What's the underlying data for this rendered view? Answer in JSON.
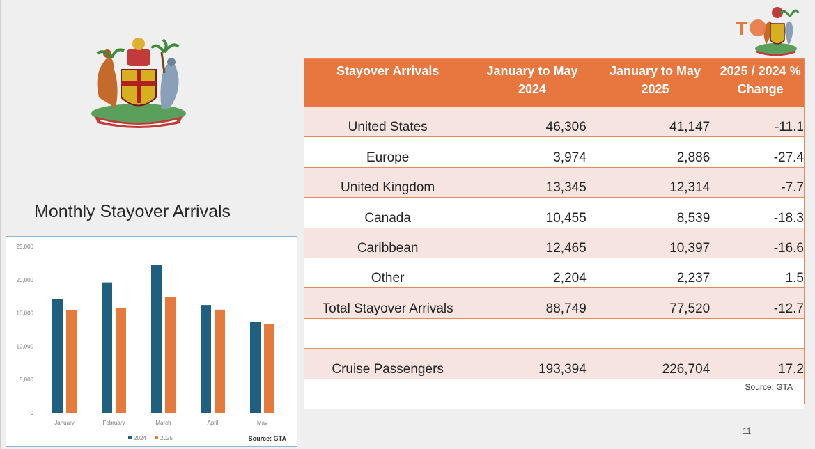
{
  "chart_heading": "Monthly Stayover Arrivals",
  "colors": {
    "accent": "#e8773f",
    "series_2024": "#1f5f80",
    "series_2025": "#e67a3c",
    "row_shade": "#f5e4e0"
  },
  "icons": [
    "coat-of-arms-icon",
    "grenada-tourism-logo-icon"
  ],
  "logo_text": "T",
  "table": {
    "headers": [
      "Stayover Arrivals",
      "January to May 2024",
      "January to May 2025",
      "2025 / 2024 % Change"
    ],
    "rows": [
      {
        "label": "United States",
        "v2024": "46,306",
        "v2025": "41,147",
        "change": "-11.1"
      },
      {
        "label": "Europe",
        "v2024": "3,974",
        "v2025": "2,886",
        "change": "-27.4"
      },
      {
        "label": "United Kingdom",
        "v2024": "13,345",
        "v2025": "12,314",
        "change": "-7.7"
      },
      {
        "label": "Canada",
        "v2024": "10,455",
        "v2025": "8,539",
        "change": "-18.3"
      },
      {
        "label": "Caribbean",
        "v2024": "12,465",
        "v2025": "10,397",
        "change": "-16.6"
      },
      {
        "label": "Other",
        "v2024": "2,204",
        "v2025": "2,237",
        "change": "1.5"
      },
      {
        "label": "Total Stayover Arrivals",
        "v2024": "88,749",
        "v2025": "77,520",
        "change": "-12.7"
      },
      {
        "label": "",
        "v2024": "",
        "v2025": "",
        "change": ""
      },
      {
        "label": "Cruise Passengers",
        "v2024": "193,394",
        "v2025": "226,704",
        "change": "17.2"
      }
    ],
    "source": "Source: GTA"
  },
  "page_number": "11",
  "chart_data": {
    "type": "bar",
    "categories": [
      "January",
      "February",
      "March",
      "April",
      "May"
    ],
    "series": [
      {
        "name": "2024",
        "values": [
          17100,
          19600,
          22200,
          16200,
          13600
        ]
      },
      {
        "name": "2025",
        "values": [
          15400,
          15800,
          17400,
          15500,
          13300
        ]
      }
    ],
    "ylim": [
      0,
      25000
    ],
    "yticks": [
      "0",
      "5,000",
      "10,000",
      "15,000",
      "20,000",
      "25,000"
    ],
    "legend": [
      "2024",
      "2025"
    ],
    "legend_position": "bottom",
    "grid": false,
    "source": "Source: GTA"
  }
}
